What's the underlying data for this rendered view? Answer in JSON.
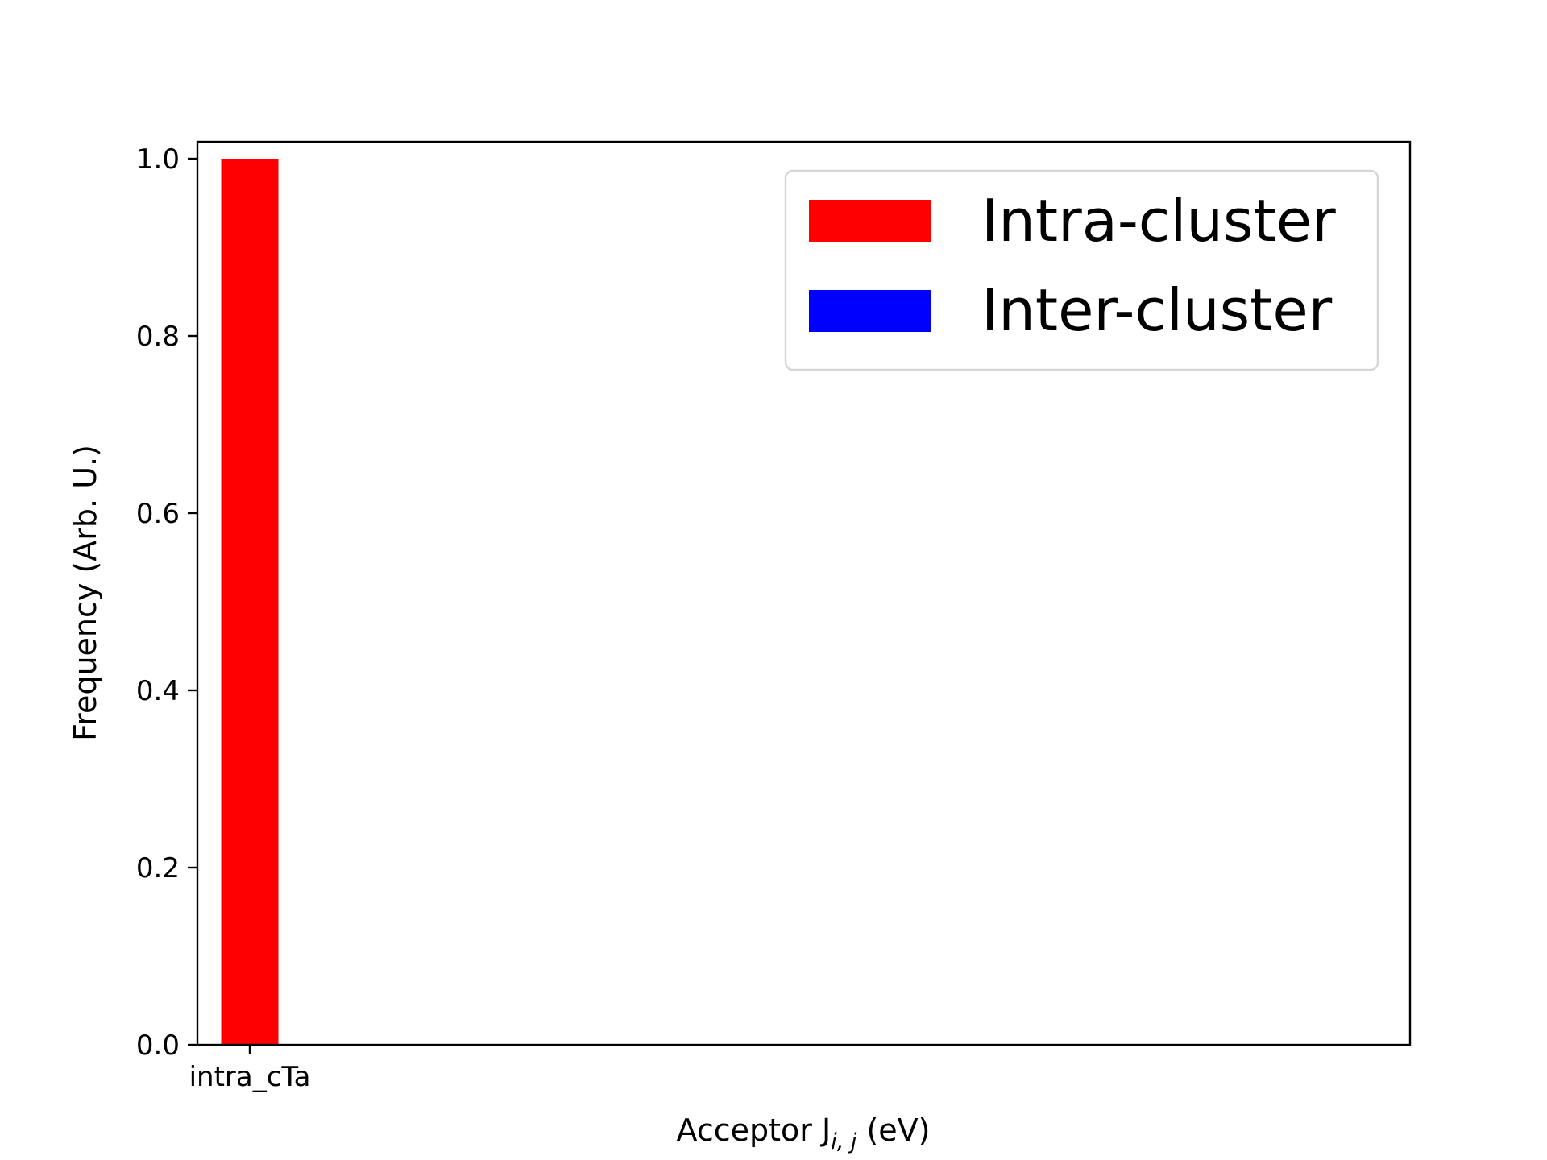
{
  "chart_data": {
    "type": "bar",
    "categories": [
      "intra_cTa"
    ],
    "series": [
      {
        "name": "Intra-cluster",
        "color": "#ff0000",
        "values": [
          1.0
        ]
      },
      {
        "name": "Inter-cluster",
        "color": "#0000ff",
        "values": [
          0.0
        ]
      }
    ],
    "xlabel": {
      "main": "Acceptor J",
      "subscript": "i, j",
      "suffix": " (eV)"
    },
    "ylabel": "Frequency (Arb. U.)",
    "ylim": [
      0,
      1.02
    ],
    "yticks": [
      {
        "value": 0.0,
        "label": "0.0"
      },
      {
        "value": 0.2,
        "label": "0.2"
      },
      {
        "value": 0.4,
        "label": "0.4"
      },
      {
        "value": 0.6,
        "label": "0.6"
      },
      {
        "value": 0.8,
        "label": "0.8"
      },
      {
        "value": 1.0,
        "label": "1.0"
      }
    ],
    "grid": false,
    "legend_position": "top-right"
  }
}
